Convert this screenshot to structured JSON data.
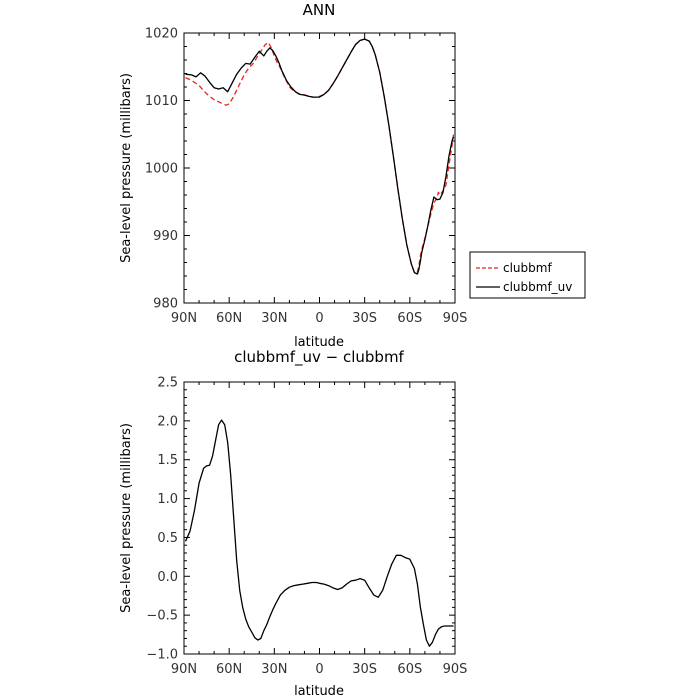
{
  "chart_data": [
    {
      "type": "line",
      "title": "ANN",
      "xlabel": "latitude",
      "ylabel": "Sea-level pressure (millibars)",
      "x_tick_labels": [
        "90N",
        "60N",
        "30N",
        "0",
        "30S",
        "60S",
        "90S"
      ],
      "x_tick_values": [
        90,
        60,
        30,
        0,
        -30,
        -60,
        -90
      ],
      "xlim": [
        90,
        -90
      ],
      "y_tick_labels": [
        "980",
        "990",
        "1000",
        "1010",
        "1020"
      ],
      "y_tick_values": [
        980,
        990,
        1000,
        1010,
        1020
      ],
      "ylim": [
        980,
        1020
      ],
      "grid": false,
      "legend_position": "right",
      "series": [
        {
          "name": "clubbmf",
          "color": "#e8251e",
          "dash": "dashed",
          "x": [
            89,
            85,
            80,
            75,
            70,
            65,
            62,
            60,
            57,
            54,
            50,
            47,
            44,
            41,
            38,
            36,
            34,
            32,
            30,
            28,
            26,
            24,
            22,
            20,
            17,
            14,
            11,
            8,
            5,
            2,
            0,
            -3,
            -6,
            -9,
            -12,
            -15,
            -18,
            -21,
            -24,
            -27,
            -30,
            -33,
            -35,
            -37,
            -40,
            -43,
            -46,
            -49,
            -52,
            -55,
            -58,
            -61,
            -63,
            -65,
            -66,
            -67,
            -68,
            -70,
            -72,
            -74,
            -76,
            -78,
            -79,
            -80,
            -82,
            -84,
            -86,
            -88,
            -89
          ],
          "y": [
            1013.4,
            1013.0,
            1012.2,
            1011.0,
            1010.1,
            1009.6,
            1009.3,
            1009.5,
            1010.6,
            1012.0,
            1013.8,
            1014.8,
            1015.5,
            1016.6,
            1017.6,
            1018.3,
            1018.6,
            1017.8,
            1016.6,
            1015.6,
            1014.8,
            1013.8,
            1012.9,
            1012.0,
            1011.4,
            1011.0,
            1010.9,
            1010.7,
            1010.5,
            1010.5,
            1010.6,
            1010.9,
            1011.5,
            1012.5,
            1013.6,
            1014.8,
            1016.0,
            1017.2,
            1018.3,
            1018.9,
            1019.1,
            1018.8,
            1018.0,
            1016.8,
            1014.2,
            1010.6,
            1006.4,
            1001.8,
            997.0,
            992.5,
            988.6,
            985.8,
            984.5,
            984.6,
            985.6,
            987.0,
            988.0,
            989.6,
            991.4,
            993.2,
            994.8,
            995.6,
            996.4,
            996.0,
            996.6,
            997.5,
            1000.5,
            1003.3,
            1005.0
          ]
        },
        {
          "name": "clubbmf_uv",
          "color": "#000000",
          "dash": "solid",
          "x": [
            89,
            85,
            82,
            79,
            76,
            73,
            70,
            67,
            64,
            61,
            58,
            55,
            52,
            49,
            46,
            43,
            40,
            37,
            35,
            33,
            31,
            29,
            27,
            25,
            22,
            19,
            16,
            13,
            10,
            7,
            4,
            1,
            0,
            -3,
            -6,
            -9,
            -12,
            -15,
            -18,
            -21,
            -24,
            -27,
            -30,
            -33,
            -35,
            -37,
            -40,
            -43,
            -46,
            -49,
            -52,
            -55,
            -58,
            -61,
            -63,
            -65,
            -66,
            -67,
            -68,
            -70,
            -72,
            -74,
            -76,
            -78,
            -80,
            -82,
            -84,
            -86,
            -88,
            -89
          ],
          "y": [
            1013.9,
            1013.8,
            1013.5,
            1014.1,
            1013.6,
            1012.7,
            1011.9,
            1011.7,
            1011.9,
            1011.3,
            1012.6,
            1013.9,
            1014.8,
            1015.5,
            1015.4,
            1016.4,
            1017.3,
            1016.6,
            1017.3,
            1017.8,
            1017.4,
            1016.6,
            1015.6,
            1014.4,
            1013.0,
            1012.0,
            1011.3,
            1010.9,
            1010.8,
            1010.6,
            1010.5,
            1010.5,
            1010.5,
            1010.9,
            1011.5,
            1012.5,
            1013.6,
            1014.8,
            1016.0,
            1017.2,
            1018.3,
            1018.9,
            1019.1,
            1018.8,
            1018.0,
            1016.8,
            1014.2,
            1010.6,
            1006.4,
            1001.8,
            997.0,
            992.5,
            988.6,
            985.8,
            984.5,
            984.3,
            985.0,
            986.2,
            987.6,
            989.4,
            991.5,
            993.8,
            995.7,
            995.3,
            995.4,
            996.4,
            998.8,
            1001.8,
            1004.0,
            1004.6
          ]
        }
      ]
    },
    {
      "type": "line",
      "title": "clubbmf_uv − clubbmf",
      "xlabel": "latitude",
      "ylabel": "Sea-level pressure (millibars)",
      "x_tick_labels": [
        "90N",
        "60N",
        "30N",
        "0",
        "30S",
        "60S",
        "90S"
      ],
      "x_tick_values": [
        90,
        60,
        30,
        0,
        -30,
        -60,
        -90
      ],
      "xlim": [
        90,
        -90
      ],
      "y_tick_labels": [
        "2.5",
        "2.0",
        "1.5",
        "1.0",
        "0.5",
        "0.0",
        "−0.5",
        "−1.0"
      ],
      "y_tick_values": [
        2.5,
        2.0,
        1.5,
        1.0,
        0.5,
        0.0,
        -0.5,
        -1.0
      ],
      "ylim": [
        -1.0,
        2.5
      ],
      "grid": false,
      "series": [
        {
          "name": "",
          "color": "#000000",
          "dash": "solid",
          "x": [
            89,
            86,
            83,
            80,
            77,
            75,
            73,
            71,
            69,
            67,
            65,
            63,
            61,
            59,
            57,
            55,
            53,
            51,
            49,
            47,
            45,
            43,
            41,
            39,
            37,
            35,
            33,
            31,
            29,
            26,
            23,
            20,
            17,
            14,
            11,
            8,
            5,
            2,
            0,
            -3,
            -6,
            -9,
            -12,
            -15,
            -18,
            -21,
            -24,
            -27,
            -30,
            -33,
            -36,
            -39,
            -42,
            -45,
            -48,
            -51,
            -54,
            -57,
            -60,
            -63,
            -65,
            -67,
            -69,
            -71,
            -73,
            -75,
            -77,
            -79,
            -81,
            -83,
            -85,
            -87,
            -89
          ],
          "y": [
            0.45,
            0.58,
            0.85,
            1.2,
            1.39,
            1.42,
            1.43,
            1.55,
            1.75,
            1.95,
            2.01,
            1.95,
            1.72,
            1.3,
            0.75,
            0.2,
            -0.18,
            -0.4,
            -0.55,
            -0.65,
            -0.72,
            -0.79,
            -0.82,
            -0.8,
            -0.7,
            -0.62,
            -0.52,
            -0.43,
            -0.35,
            -0.24,
            -0.18,
            -0.14,
            -0.12,
            -0.11,
            -0.1,
            -0.09,
            -0.08,
            -0.08,
            -0.09,
            -0.1,
            -0.12,
            -0.15,
            -0.17,
            -0.15,
            -0.1,
            -0.06,
            -0.05,
            -0.03,
            -0.05,
            -0.15,
            -0.24,
            -0.27,
            -0.18,
            0.0,
            0.16,
            0.27,
            0.27,
            0.24,
            0.22,
            0.1,
            -0.1,
            -0.4,
            -0.62,
            -0.82,
            -0.9,
            -0.85,
            -0.75,
            -0.68,
            -0.65,
            -0.64,
            -0.64,
            -0.64,
            -0.64
          ]
        }
      ]
    }
  ]
}
